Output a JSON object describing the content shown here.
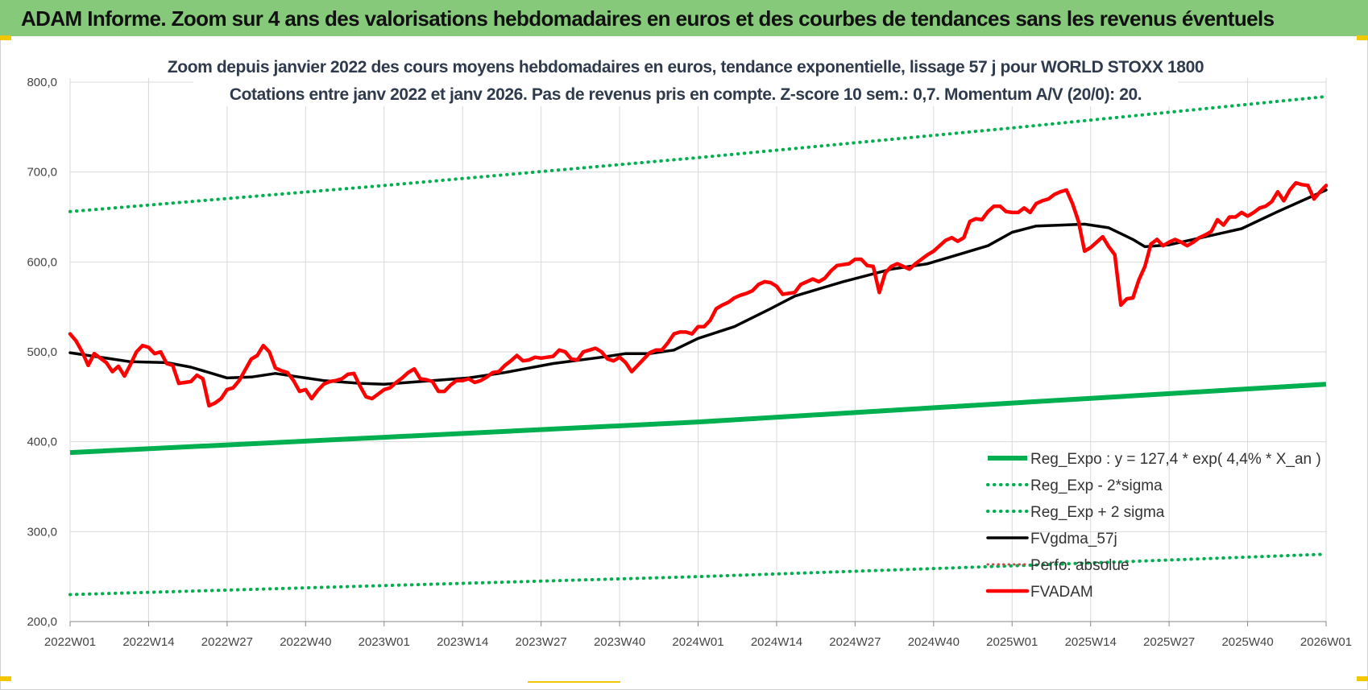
{
  "banner": {
    "title": "ADAM Informe. Zoom sur 4 ans des valorisations hebdomadaires en euros et des courbes de tendances sans les revenus éventuels"
  },
  "colors": {
    "banner_bg": "#86c97a",
    "reg_green": "#00b050",
    "black": "#000000",
    "red": "#ff0000",
    "grid": "#d9d9d9"
  },
  "chart_data": {
    "type": "line",
    "title": "Zoom depuis janvier 2022 des cours moyens hebdomadaires en euros, tendance exponentielle, lissage 57 j pour WORLD STOXX 1800",
    "subtitle": "Cotations entre janv 2022 et janv 2026. Pas de revenus pris en compte. Z-score 10 sem.: 0,7. Momentum A/V (20/0): 20.",
    "xlabel": "",
    "ylabel": "",
    "ylim": [
      200,
      800
    ],
    "yticks": [
      "200,0",
      "300,0",
      "400,0",
      "500,0",
      "600,0",
      "700,0",
      "800,0"
    ],
    "x_tick_labels": [
      "2022W01",
      "2022W14",
      "2022W27",
      "2022W40",
      "2023W01",
      "2023W14",
      "2023W27",
      "2023W40",
      "2024W01",
      "2024W14",
      "2024W27",
      "2024W40",
      "2025W01",
      "2025W14",
      "2025W27",
      "2025W40",
      "2026W01"
    ],
    "x_range_weeks": [
      0,
      208
    ],
    "grid": "vertical and horizontal",
    "legend_position": "bottom-right",
    "series": [
      {
        "name": "Reg_Expo : y = 127,4 * exp( 4,4% *  X_an )",
        "style": "solid-thick-green",
        "points": [
          [
            0,
            388
          ],
          [
            52,
            405
          ],
          [
            104,
            422
          ],
          [
            156,
            443
          ],
          [
            208,
            464
          ]
        ]
      },
      {
        "name": "Reg_Exp - 2*sigma",
        "style": "dotted-green",
        "points": [
          [
            0,
            230
          ],
          [
            52,
            240
          ],
          [
            104,
            250
          ],
          [
            156,
            262
          ],
          [
            208,
            275
          ]
        ]
      },
      {
        "name": "Reg_Exp + 2 sigma",
        "style": "dotted-green",
        "points": [
          [
            0,
            656
          ],
          [
            52,
            685
          ],
          [
            104,
            716
          ],
          [
            156,
            749
          ],
          [
            208,
            784
          ]
        ]
      },
      {
        "name": "FVgdma_57j",
        "style": "solid-black",
        "points": [
          [
            0,
            499
          ],
          [
            10,
            489
          ],
          [
            16,
            488
          ],
          [
            20,
            483
          ],
          [
            24,
            475
          ],
          [
            26,
            471
          ],
          [
            30,
            472
          ],
          [
            34,
            476
          ],
          [
            38,
            472
          ],
          [
            42,
            468
          ],
          [
            48,
            465
          ],
          [
            52,
            464
          ],
          [
            56,
            466
          ],
          [
            60,
            468
          ],
          [
            66,
            471
          ],
          [
            72,
            477
          ],
          [
            80,
            487
          ],
          [
            88,
            494
          ],
          [
            92,
            498
          ],
          [
            96,
            498
          ],
          [
            100,
            502
          ],
          [
            104,
            515
          ],
          [
            110,
            528
          ],
          [
            116,
            548
          ],
          [
            120,
            562
          ],
          [
            128,
            578
          ],
          [
            136,
            592
          ],
          [
            142,
            598
          ],
          [
            148,
            610
          ],
          [
            152,
            618
          ],
          [
            156,
            633
          ],
          [
            160,
            640
          ],
          [
            164,
            641
          ],
          [
            168,
            642
          ],
          [
            172,
            638
          ],
          [
            176,
            625
          ],
          [
            178,
            617
          ],
          [
            182,
            619
          ],
          [
            188,
            628
          ],
          [
            194,
            637
          ],
          [
            200,
            656
          ],
          [
            204,
            668
          ],
          [
            208,
            680
          ]
        ]
      },
      {
        "name": "Perfo. absolue",
        "style": "dotted-red",
        "points": []
      },
      {
        "name": "FVADAM",
        "style": "solid-thick-red",
        "points": [
          [
            0,
            520
          ],
          [
            1,
            512
          ],
          [
            2,
            500
          ],
          [
            3,
            485
          ],
          [
            4,
            498
          ],
          [
            5,
            493
          ],
          [
            6,
            488
          ],
          [
            7,
            478
          ],
          [
            8,
            484
          ],
          [
            9,
            473
          ],
          [
            10,
            486
          ],
          [
            11,
            500
          ],
          [
            12,
            507
          ],
          [
            13,
            505
          ],
          [
            14,
            498
          ],
          [
            15,
            500
          ],
          [
            16,
            487
          ],
          [
            17,
            485
          ],
          [
            18,
            465
          ],
          [
            19,
            466
          ],
          [
            20,
            467
          ],
          [
            21,
            474
          ],
          [
            22,
            470
          ],
          [
            23,
            440
          ],
          [
            24,
            443
          ],
          [
            25,
            448
          ],
          [
            26,
            458
          ],
          [
            27,
            460
          ],
          [
            28,
            468
          ],
          [
            29,
            480
          ],
          [
            30,
            492
          ],
          [
            31,
            496
          ],
          [
            32,
            507
          ],
          [
            33,
            500
          ],
          [
            34,
            482
          ],
          [
            35,
            479
          ],
          [
            36,
            477
          ],
          [
            37,
            468
          ],
          [
            38,
            456
          ],
          [
            39,
            458
          ],
          [
            40,
            448
          ],
          [
            41,
            457
          ],
          [
            42,
            464
          ],
          [
            43,
            467
          ],
          [
            44,
            468
          ],
          [
            45,
            470
          ],
          [
            46,
            475
          ],
          [
            47,
            476
          ],
          [
            48,
            462
          ],
          [
            49,
            450
          ],
          [
            50,
            448
          ],
          [
            51,
            453
          ],
          [
            52,
            458
          ],
          [
            53,
            460
          ],
          [
            54,
            466
          ],
          [
            55,
            471
          ],
          [
            56,
            477
          ],
          [
            57,
            481
          ],
          [
            58,
            470
          ],
          [
            59,
            469
          ],
          [
            60,
            467
          ],
          [
            61,
            456
          ],
          [
            62,
            456
          ],
          [
            63,
            463
          ],
          [
            64,
            468
          ],
          [
            65,
            468
          ],
          [
            66,
            470
          ],
          [
            67,
            466
          ],
          [
            68,
            468
          ],
          [
            69,
            472
          ],
          [
            70,
            477
          ],
          [
            71,
            478
          ],
          [
            72,
            485
          ],
          [
            73,
            490
          ],
          [
            74,
            496
          ],
          [
            75,
            490
          ],
          [
            76,
            491
          ],
          [
            77,
            494
          ],
          [
            78,
            493
          ],
          [
            79,
            494
          ],
          [
            80,
            495
          ],
          [
            81,
            502
          ],
          [
            82,
            500
          ],
          [
            83,
            492
          ],
          [
            84,
            491
          ],
          [
            85,
            500
          ],
          [
            86,
            502
          ],
          [
            87,
            504
          ],
          [
            88,
            500
          ],
          [
            89,
            492
          ],
          [
            90,
            490
          ],
          [
            91,
            494
          ],
          [
            92,
            488
          ],
          [
            93,
            478
          ],
          [
            94,
            485
          ],
          [
            95,
            492
          ],
          [
            96,
            499
          ],
          [
            97,
            502
          ],
          [
            98,
            502
          ],
          [
            99,
            510
          ],
          [
            100,
            520
          ],
          [
            101,
            522
          ],
          [
            102,
            522
          ],
          [
            103,
            520
          ],
          [
            104,
            528
          ],
          [
            105,
            528
          ],
          [
            106,
            535
          ],
          [
            107,
            548
          ],
          [
            108,
            552
          ],
          [
            109,
            555
          ],
          [
            110,
            560
          ],
          [
            111,
            563
          ],
          [
            112,
            565
          ],
          [
            113,
            568
          ],
          [
            114,
            575
          ],
          [
            115,
            578
          ],
          [
            116,
            577
          ],
          [
            117,
            573
          ],
          [
            118,
            564
          ],
          [
            119,
            565
          ],
          [
            120,
            566
          ],
          [
            121,
            575
          ],
          [
            122,
            578
          ],
          [
            123,
            581
          ],
          [
            124,
            578
          ],
          [
            125,
            582
          ],
          [
            126,
            590
          ],
          [
            127,
            596
          ],
          [
            128,
            597
          ],
          [
            129,
            598
          ],
          [
            130,
            603
          ],
          [
            131,
            603
          ],
          [
            132,
            596
          ],
          [
            133,
            595
          ],
          [
            134,
            566
          ],
          [
            135,
            588
          ],
          [
            136,
            595
          ],
          [
            137,
            598
          ],
          [
            138,
            595
          ],
          [
            139,
            592
          ],
          [
            140,
            598
          ],
          [
            141,
            603
          ],
          [
            142,
            608
          ],
          [
            143,
            612
          ],
          [
            144,
            618
          ],
          [
            145,
            624
          ],
          [
            146,
            627
          ],
          [
            147,
            623
          ],
          [
            148,
            627
          ],
          [
            149,
            645
          ],
          [
            150,
            648
          ],
          [
            151,
            647
          ],
          [
            152,
            656
          ],
          [
            153,
            662
          ],
          [
            154,
            662
          ],
          [
            155,
            656
          ],
          [
            156,
            655
          ],
          [
            157,
            655
          ],
          [
            158,
            660
          ],
          [
            159,
            655
          ],
          [
            160,
            665
          ],
          [
            161,
            668
          ],
          [
            162,
            670
          ],
          [
            163,
            675
          ],
          [
            164,
            678
          ],
          [
            165,
            680
          ],
          [
            166,
            665
          ],
          [
            167,
            645
          ],
          [
            168,
            612
          ],
          [
            169,
            616
          ],
          [
            170,
            622
          ],
          [
            171,
            628
          ],
          [
            172,
            617
          ],
          [
            173,
            608
          ],
          [
            174,
            552
          ],
          [
            175,
            559
          ],
          [
            176,
            560
          ],
          [
            177,
            580
          ],
          [
            178,
            595
          ],
          [
            179,
            620
          ],
          [
            180,
            625
          ],
          [
            181,
            618
          ],
          [
            182,
            622
          ],
          [
            183,
            625
          ],
          [
            184,
            622
          ],
          [
            185,
            618
          ],
          [
            186,
            622
          ],
          [
            187,
            627
          ],
          [
            188,
            630
          ],
          [
            189,
            634
          ],
          [
            190,
            647
          ],
          [
            191,
            641
          ],
          [
            192,
            650
          ],
          [
            193,
            650
          ],
          [
            194,
            655
          ],
          [
            195,
            651
          ],
          [
            196,
            655
          ],
          [
            197,
            660
          ],
          [
            198,
            662
          ],
          [
            199,
            667
          ],
          [
            200,
            678
          ],
          [
            201,
            668
          ],
          [
            202,
            680
          ],
          [
            203,
            688
          ],
          [
            204,
            686
          ],
          [
            205,
            685
          ],
          [
            206,
            670
          ],
          [
            207,
            678
          ],
          [
            208,
            685
          ]
        ]
      }
    ]
  }
}
